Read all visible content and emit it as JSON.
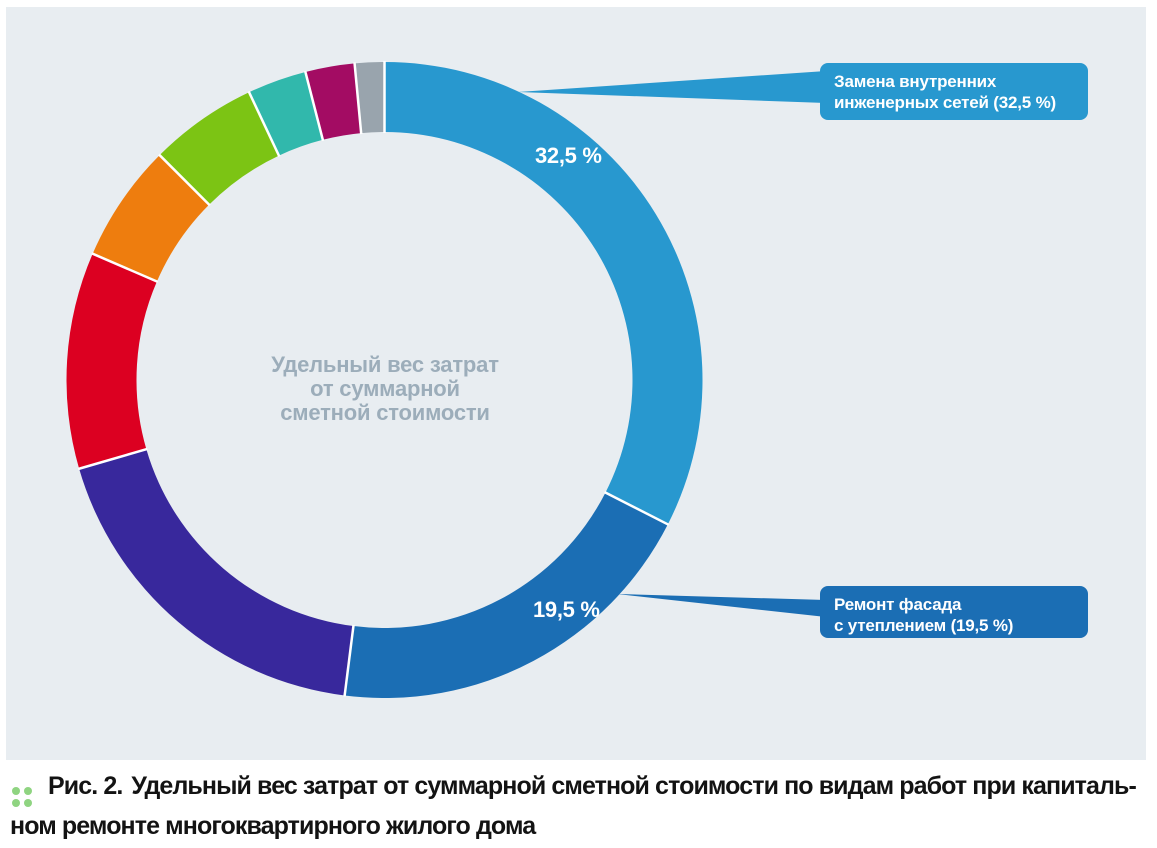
{
  "figure": {
    "page_background": "#FFFFFF",
    "panel_background": "#E8EDF1"
  },
  "chart_data": {
    "type": "pie",
    "variant": "donut",
    "direction": "clockwise",
    "start_angle_deg": 0,
    "title": "Удельный вес затрат от суммарной сметной стоимости",
    "center_label": {
      "lines": [
        "Удельный вес затрат",
        "от суммарной",
        "сметной стоимости"
      ],
      "color": "#9CADBA"
    },
    "segments": [
      {
        "label": "Замена внутренних инженерных сетей",
        "value": 32.5,
        "display_value": "32,5 %",
        "color": "#2898CF"
      },
      {
        "label": "Ремонт фасада с утеплением",
        "value": 19.5,
        "display_value": "19,5 %",
        "color": "#1B6EB4"
      },
      {
        "label": null,
        "value": 18.5,
        "color": "#38289C"
      },
      {
        "label": null,
        "value": 11.0,
        "color": "#DC0021"
      },
      {
        "label": null,
        "value": 6.0,
        "color": "#EE7D0E"
      },
      {
        "label": null,
        "value": 5.5,
        "color": "#7CC414"
      },
      {
        "label": null,
        "value": 3.0,
        "color": "#31B8AC"
      },
      {
        "label": null,
        "value": 2.5,
        "color": "#A30C63"
      },
      {
        "label": null,
        "value": 1.5,
        "color": "#99A4AD"
      }
    ]
  },
  "callouts": [
    {
      "lines": [
        "Замена внутренних",
        "инженерных сетей (32,5 %)"
      ],
      "color": "#2898CF"
    },
    {
      "lines": [
        "Ремонт фасада",
        "с утеплением (19,5 %)"
      ],
      "color": "#1B6EB4"
    }
  ],
  "caption": {
    "marker_color": "#8FD481",
    "prefix": "Рис. 2.",
    "line1": "Удельный вес затрат от суммарной сметной стоимости по видам работ при капиталь-",
    "line2": "ном ремонте многоквартирного жилого дома",
    "color": "#131313"
  }
}
